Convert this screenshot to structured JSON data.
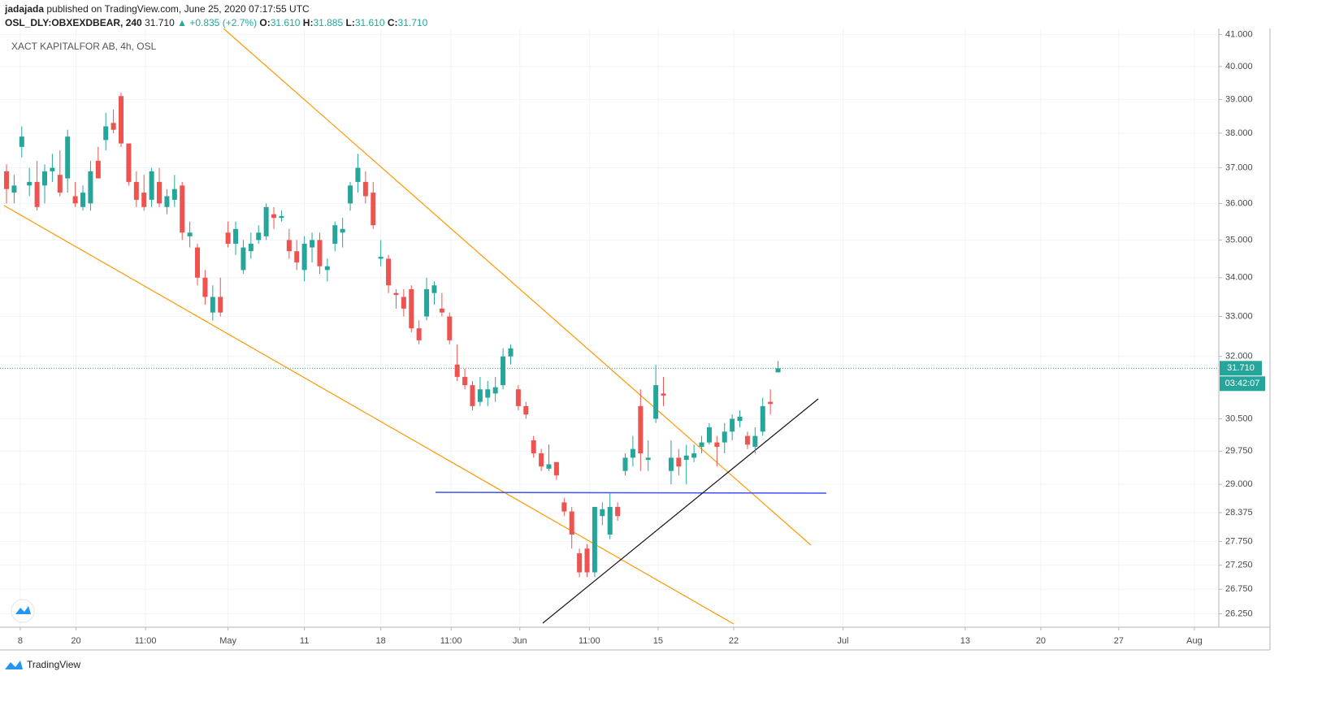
{
  "header": {
    "author": "jadajada",
    "published": "published on TradingView.com, June 25, 2020 07:17:55 UTC",
    "symbol": "OSL_DLY:OBXEXDBEAR, 240",
    "last": "31.710",
    "change": "▲ +0.835 (+2.7%)",
    "o_label": "O:",
    "o": "31.610",
    "h_label": "H:",
    "h": "31.885",
    "l_label": "L:",
    "l": "31.610",
    "c_label": "C:",
    "c": "31.710"
  },
  "chart_data": {
    "type": "candlestick",
    "title": "XACT KAPITALFOR AB, 4h, OSL",
    "log": true,
    "grid": true,
    "up_color": "#26a69a",
    "down_color": "#ef5350",
    "last_price_label": "31.710",
    "countdown": "03:42:07",
    "open": [
      36.9,
      36.3,
      37.6,
      36.5,
      36.6,
      36.5,
      36.9,
      36.8,
      36.7,
      36.2,
      35.9,
      36.0,
      37.2,
      37.8,
      38.3,
      39.1,
      37.7,
      36.6,
      36.3,
      36.1,
      36.6,
      35.9,
      36.1,
      36.5,
      35.1,
      34.8,
      34.0,
      33.1,
      33.5,
      35.2,
      34.9,
      34.2,
      34.7,
      35.0,
      35.1,
      35.7,
      35.6,
      35.0,
      34.7,
      34.2,
      34.8,
      35.0,
      34.2,
      34.9,
      35.2,
      36.0,
      36.6,
      36.6,
      36.3,
      34.5,
      34.5,
      33.6,
      33.5,
      33.7,
      32.7,
      33.0,
      33.6,
      33.2,
      33.0,
      31.8,
      31.5,
      31.3,
      30.9,
      31.0,
      31.1,
      31.3,
      32.0,
      31.2,
      30.8,
      30.0,
      29.7,
      29.35,
      29.5,
      28.6,
      28.4,
      27.5,
      27.6,
      27.1,
      28.3,
      27.9,
      28.5,
      29.3,
      29.6,
      30.8,
      29.55,
      30.5,
      31.1,
      29.3,
      29.6,
      29.55,
      29.6,
      29.85,
      29.95,
      29.95,
      29.95,
      30.2,
      30.45,
      30.1,
      29.85,
      30.2,
      30.9,
      31.61
    ],
    "high": [
      37.1,
      36.8,
      38.2,
      37.0,
      37.2,
      37.1,
      37.4,
      37.5,
      38.1,
      36.6,
      36.5,
      37.2,
      37.6,
      38.6,
      38.7,
      39.2,
      37.7,
      36.9,
      36.8,
      37.0,
      37.0,
      36.4,
      36.8,
      36.6,
      35.5,
      34.9,
      34.2,
      33.8,
      34.0,
      35.5,
      35.5,
      35.0,
      35.2,
      35.4,
      36.0,
      35.9,
      35.8,
      35.3,
      35.0,
      35.1,
      35.2,
      35.2,
      34.5,
      35.5,
      35.6,
      36.6,
      37.4,
      36.9,
      36.6,
      35.0,
      34.6,
      33.7,
      33.7,
      33.8,
      32.9,
      34.0,
      33.9,
      33.6,
      33.1,
      32.3,
      31.7,
      31.4,
      31.5,
      31.4,
      31.5,
      32.2,
      32.3,
      31.3,
      30.9,
      30.1,
      29.8,
      29.9,
      29.5,
      28.7,
      28.5,
      27.6,
      27.7,
      28.5,
      28.6,
      28.8,
      28.6,
      29.7,
      30.1,
      31.2,
      30.0,
      31.8,
      31.5,
      30.0,
      29.8,
      29.9,
      29.9,
      30.1,
      30.4,
      30.1,
      30.4,
      30.6,
      30.7,
      30.2,
      30.3,
      31.0,
      31.2,
      31.885
    ],
    "low": [
      36.0,
      36.0,
      37.3,
      36.2,
      35.8,
      36.0,
      36.6,
      36.2,
      36.3,
      35.9,
      35.8,
      35.8,
      36.7,
      37.5,
      38.0,
      37.6,
      36.5,
      35.9,
      35.8,
      35.9,
      35.9,
      35.7,
      35.9,
      35.0,
      34.8,
      33.8,
      33.3,
      32.9,
      33.0,
      34.8,
      34.6,
      34.1,
      34.5,
      34.9,
      35.0,
      35.3,
      35.5,
      34.5,
      34.2,
      33.9,
      34.4,
      34.1,
      33.9,
      34.7,
      34.8,
      35.8,
      36.3,
      36.0,
      35.3,
      34.3,
      33.6,
      33.2,
      33.0,
      32.6,
      32.3,
      32.9,
      33.3,
      33.0,
      32.3,
      31.4,
      31.2,
      30.7,
      30.8,
      30.8,
      30.9,
      31.2,
      31.8,
      30.7,
      30.5,
      29.6,
      29.3,
      29.3,
      29.1,
      28.3,
      27.6,
      27.0,
      27.0,
      27.0,
      28.1,
      27.8,
      28.2,
      29.2,
      29.4,
      29.3,
      29.3,
      30.4,
      30.8,
      29.0,
      29.2,
      29.0,
      29.5,
      29.7,
      29.9,
      29.4,
      29.7,
      30.0,
      30.3,
      29.8,
      29.7,
      30.1,
      30.6,
      31.61
    ],
    "close": [
      36.4,
      36.5,
      37.9,
      36.6,
      35.9,
      36.9,
      37.0,
      36.3,
      37.9,
      36.0,
      36.3,
      36.9,
      36.7,
      38.2,
      38.1,
      37.7,
      36.6,
      36.1,
      35.9,
      36.9,
      36.0,
      36.2,
      36.4,
      35.2,
      35.2,
      34.0,
      33.5,
      33.5,
      33.1,
      34.9,
      35.3,
      34.8,
      34.9,
      35.2,
      35.9,
      35.6,
      35.65,
      34.7,
      34.4,
      34.9,
      35.0,
      34.3,
      34.3,
      35.4,
      35.3,
      36.5,
      37.0,
      36.2,
      35.4,
      34.55,
      33.8,
      33.55,
      33.2,
      32.7,
      32.4,
      33.7,
      33.8,
      33.1,
      32.4,
      31.5,
      31.3,
      30.8,
      31.2,
      31.2,
      31.25,
      32.0,
      32.2,
      30.8,
      30.6,
      29.7,
      29.4,
      29.45,
      29.2,
      28.4,
      27.9,
      27.1,
      27.1,
      28.5,
      28.45,
      28.5,
      28.3,
      29.6,
      29.8,
      29.7,
      29.6,
      31.3,
      31.05,
      29.6,
      29.4,
      29.65,
      29.7,
      29.95,
      30.3,
      29.85,
      30.2,
      30.5,
      30.55,
      29.9,
      30.1,
      30.8,
      30.85,
      31.71
    ],
    "xlim": [
      -0.85,
      158.7
    ],
    "xticks": [
      {
        "value": 1.8,
        "label": "8"
      },
      {
        "value": 9.1,
        "label": "20"
      },
      {
        "value": 18.2,
        "label": "11:00"
      },
      {
        "value": 29,
        "label": "May"
      },
      {
        "value": 39,
        "label": "11"
      },
      {
        "value": 49,
        "label": "18"
      },
      {
        "value": 58.2,
        "label": "11:00"
      },
      {
        "value": 67.2,
        "label": "Jun"
      },
      {
        "value": 76.3,
        "label": "11:00"
      },
      {
        "value": 85.3,
        "label": "15"
      },
      {
        "value": 95.2,
        "label": "22"
      },
      {
        "value": 109.5,
        "label": "Jul"
      },
      {
        "value": 125.5,
        "label": "13"
      },
      {
        "value": 135.4,
        "label": "20"
      },
      {
        "value": 145.6,
        "label": "27"
      },
      {
        "value": 155.5,
        "label": "Aug"
      }
    ],
    "ylim": [
      25.98,
      41.19
    ],
    "yticks": [
      {
        "value": 41,
        "label": "41.000"
      },
      {
        "value": 40,
        "label": "40.000"
      },
      {
        "value": 39,
        "label": "39.000"
      },
      {
        "value": 38,
        "label": "38.000"
      },
      {
        "value": 37,
        "label": "37.000"
      },
      {
        "value": 36,
        "label": "36.000"
      },
      {
        "value": 35,
        "label": "35.000"
      },
      {
        "value": 34,
        "label": "34.000"
      },
      {
        "value": 33,
        "label": "33.000"
      },
      {
        "value": 32,
        "label": "32.000"
      },
      {
        "value": 30.5,
        "label": "30.500"
      },
      {
        "value": 29.75,
        "label": "29.750"
      },
      {
        "value": 29,
        "label": "29.000"
      },
      {
        "value": 28.375,
        "label": "28.375"
      },
      {
        "value": 27.75,
        "label": "27.750"
      },
      {
        "value": 27.25,
        "label": "27.250"
      },
      {
        "value": 26.75,
        "label": "26.750"
      },
      {
        "value": 26.25,
        "label": "26.250"
      }
    ]
  },
  "footer": {
    "brand": "TradingView"
  }
}
